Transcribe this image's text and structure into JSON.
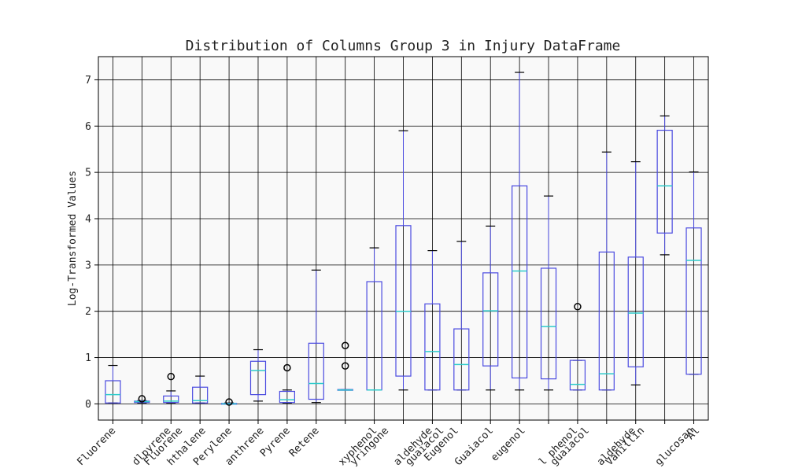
{
  "chart_data": {
    "type": "boxplot",
    "title": "Distribution of Columns Group 3 in Injury DataFrame",
    "xlabel": "",
    "ylabel": "Log-Transformed Values",
    "ylim": [
      -0.35,
      7.5
    ],
    "yticks": [
      0,
      1,
      2,
      3,
      4,
      5,
      6,
      7
    ],
    "grid": true,
    "colors": {
      "box": "#4a4ae0",
      "median": "#2ecbcb",
      "grid": "#000000",
      "background": "#f9f9f9",
      "cap": "#000000",
      "flier": "#000000"
    },
    "series": [
      {
        "name": "Fluorene",
        "min": 0.02,
        "q1": 0.02,
        "median": 0.2,
        "q3": 0.5,
        "max": 0.83,
        "fliers": []
      },
      {
        "name": "dlpyrene",
        "min": 0.02,
        "q1": 0.03,
        "median": 0.05,
        "q3": 0.06,
        "max": 0.07,
        "fliers": [
          0.11
        ]
      },
      {
        "name": "Fluorene",
        "min": 0.02,
        "q1": 0.03,
        "median": 0.06,
        "q3": 0.17,
        "max": 0.28,
        "fliers": [
          0.59
        ]
      },
      {
        "name": "hthalene",
        "min": 0.02,
        "q1": 0.02,
        "median": 0.07,
        "q3": 0.36,
        "max": 0.6,
        "fliers": []
      },
      {
        "name": "Perylene",
        "min": 0.0,
        "q1": 0.0,
        "median": 0.0,
        "q3": 0.01,
        "max": 0.02,
        "fliers": [
          0.04
        ]
      },
      {
        "name": "anthrene",
        "min": 0.06,
        "q1": 0.2,
        "median": 0.72,
        "q3": 0.92,
        "max": 1.17,
        "fliers": []
      },
      {
        "name": "Pyrene",
        "min": 0.02,
        "q1": 0.03,
        "median": 0.09,
        "q3": 0.27,
        "max": 0.3,
        "fliers": [
          0.78
        ]
      },
      {
        "name": "Retene",
        "min": 0.03,
        "q1": 0.1,
        "median": 0.44,
        "q3": 1.31,
        "max": 2.89,
        "fliers": []
      },
      {
        "name": "",
        "min": 0.3,
        "q1": 0.3,
        "median": 0.3,
        "q3": 0.31,
        "max": 0.31,
        "fliers": [
          0.82,
          1.26
        ]
      },
      {
        "name": "xyphenol",
        "min": 0.3,
        "q1": 0.3,
        "median": 0.3,
        "q3": 2.64,
        "max": 3.37,
        "fliers": []
      },
      {
        "name": "yringone",
        "min": 0.3,
        "q1": 0.6,
        "median": 2.0,
        "q3": 3.85,
        "max": 5.9,
        "fliers": []
      },
      {
        "name": "aldehyde",
        "min": 0.3,
        "q1": 0.3,
        "median": 1.13,
        "q3": 2.16,
        "max": 3.31,
        "fliers": []
      },
      {
        "name": "guaiacol",
        "min": 0.3,
        "q1": 0.3,
        "median": 0.85,
        "q3": 1.62,
        "max": 3.51,
        "fliers": []
      },
      {
        "name": "Eugenol",
        "min": 0.3,
        "q1": 0.82,
        "median": 2.01,
        "q3": 2.83,
        "max": 3.84,
        "fliers": []
      },
      {
        "name": "Guaiacol",
        "min": 0.3,
        "q1": 0.56,
        "median": 2.87,
        "q3": 4.71,
        "max": 7.16,
        "fliers": []
      },
      {
        "name": "eugenol",
        "min": 0.3,
        "q1": 0.54,
        "median": 1.67,
        "q3": 2.93,
        "max": 4.49,
        "fliers": []
      },
      {
        "name": "l phenol",
        "min": 0.3,
        "q1": 0.3,
        "median": 0.42,
        "q3": 0.94,
        "max": 0.94,
        "fliers": [
          2.1
        ]
      },
      {
        "name": "guaiacol",
        "min": 0.3,
        "q1": 0.3,
        "median": 0.65,
        "q3": 3.28,
        "max": 5.44,
        "fliers": []
      },
      {
        "name": "aldehyde",
        "min": 0.41,
        "q1": 0.8,
        "median": 1.96,
        "q3": 3.17,
        "max": 5.23,
        "fliers": []
      },
      {
        "name": "Vanillin",
        "min": 3.22,
        "q1": 3.69,
        "median": 4.71,
        "q3": 5.91,
        "max": 6.22,
        "fliers": []
      },
      {
        "name": "glucosan",
        "min": 0.64,
        "q1": 0.64,
        "median": 3.1,
        "q3": 3.8,
        "max": 5.01,
        "fliers": []
      }
    ],
    "xtick_labels": [
      {
        "text": "Fluorene",
        "slot": 0
      },
      {
        "text": "dlpyrene",
        "slot": 1.9
      },
      {
        "text": "Fluorene",
        "slot": 2.3
      },
      {
        "text": "hthalene",
        "slot": 3.1
      },
      {
        "text": "Perylene",
        "slot": 4.0
      },
      {
        "text": "anthrene",
        "slot": 5.1
      },
      {
        "text": "Pyrene",
        "slot": 6.0
      },
      {
        "text": "Retene",
        "slot": 7.0
      },
      {
        "text": "xyphenol",
        "slot": 9.0
      },
      {
        "text": "yringone",
        "slot": 9.4
      },
      {
        "text": "aldehyde",
        "slot": 10.9
      },
      {
        "text": "guaiacol",
        "slot": 11.3
      },
      {
        "text": "Eugenol",
        "slot": 11.8
      },
      {
        "text": "Guaiacol",
        "slot": 13.0
      },
      {
        "text": "eugenol",
        "slot": 14.1
      },
      {
        "text": "l phenol",
        "slot": 15.9
      },
      {
        "text": "guaiacol",
        "slot": 16.3
      },
      {
        "text": "aldehyde",
        "slot": 17.9
      },
      {
        "text": "Vanillin",
        "slot": 18.2
      },
      {
        "text": "glucosan",
        "slot": 19.9
      },
      {
        "text": "Al",
        "slot": 20.1
      }
    ]
  }
}
